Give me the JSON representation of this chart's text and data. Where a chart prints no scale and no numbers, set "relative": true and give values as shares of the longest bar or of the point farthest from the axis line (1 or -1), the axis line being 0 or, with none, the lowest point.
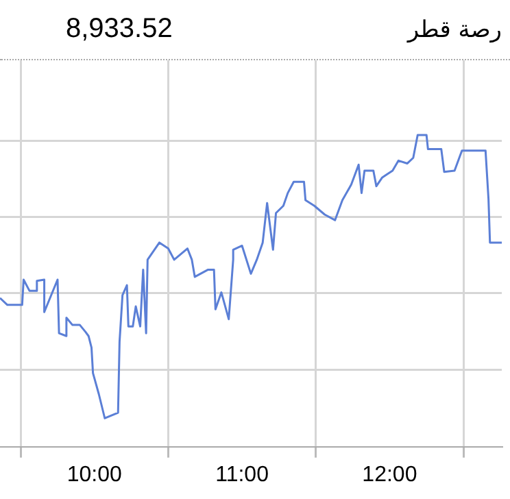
{
  "chart_data": {
    "type": "line",
    "title": "رصة قطر",
    "subtitle": "8,933.52",
    "relative": true,
    "grid": true,
    "legend": false,
    "marker": "none",
    "line_style": "solid",
    "xlim": [
      9.36,
      12.76
    ],
    "xticks": [
      {
        "value": 9.5,
        "label": null
      },
      {
        "value": 10,
        "label": "10:00"
      },
      {
        "value": 10.5,
        "label": null
      },
      {
        "value": 11,
        "label": "11:00"
      },
      {
        "value": 11.5,
        "label": null
      },
      {
        "value": 12,
        "label": "12:00"
      },
      {
        "value": 12.5,
        "label": null
      }
    ],
    "series": [
      {
        "color": "#5b7fd6",
        "x": [
          9.36,
          9.41,
          9.51,
          9.52,
          9.56,
          9.61,
          9.61,
          9.66,
          9.66,
          9.75,
          9.76,
          9.81,
          9.81,
          9.85,
          9.9,
          9.94,
          9.96,
          9.98,
          9.99,
          10.03,
          10.07,
          10.16,
          10.17,
          10.19,
          10.22,
          10.23,
          10.26,
          10.28,
          10.31,
          10.33,
          10.35,
          10.36,
          10.44,
          10.5,
          10.54,
          10.63,
          10.66,
          10.68,
          10.77,
          10.81,
          10.82,
          10.86,
          10.91,
          10.94,
          10.94,
          11.0,
          11.06,
          11.1,
          11.14,
          11.17,
          11.21,
          11.23,
          11.28,
          11.31,
          11.35,
          11.42,
          11.43,
          11.49,
          11.56,
          11.63,
          11.68,
          11.74,
          11.79,
          11.81,
          11.83,
          11.89,
          11.91,
          11.95,
          12.02,
          12.06,
          12.12,
          12.16,
          12.19,
          12.25,
          12.26,
          12.35,
          12.37,
          12.44,
          12.49,
          12.65,
          12.67,
          12.68,
          12.76
        ],
        "values": [
          0.477,
          0.455,
          0.455,
          0.536,
          0.5,
          0.5,
          0.532,
          0.536,
          0.432,
          0.536,
          0.364,
          0.355,
          0.414,
          0.391,
          0.391,
          0.368,
          0.355,
          0.318,
          0.236,
          0.168,
          0.091,
          0.109,
          0.336,
          0.486,
          0.518,
          0.386,
          0.386,
          0.45,
          0.386,
          0.568,
          0.364,
          0.6,
          0.655,
          0.636,
          0.6,
          0.636,
          0.6,
          0.545,
          0.568,
          0.568,
          0.441,
          0.495,
          0.409,
          0.6,
          0.632,
          0.645,
          0.555,
          0.6,
          0.655,
          0.782,
          0.632,
          0.75,
          0.773,
          0.814,
          0.85,
          0.85,
          0.791,
          0.773,
          0.745,
          0.727,
          0.791,
          0.841,
          0.905,
          0.814,
          0.886,
          0.886,
          0.836,
          0.864,
          0.886,
          0.918,
          0.909,
          0.927,
          1,
          1,
          0.955,
          0.955,
          0.882,
          0.886,
          0.95,
          0.95,
          0.795,
          0.655,
          0.655
        ]
      }
    ]
  }
}
